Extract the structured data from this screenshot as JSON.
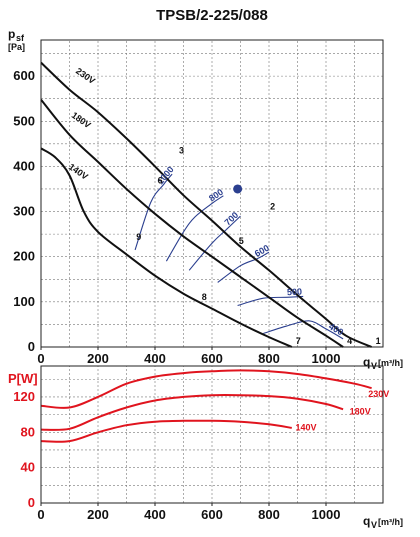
{
  "title": "TPSB/2-225/088",
  "colors": {
    "black": "#111111",
    "blue": "#2b3f8f",
    "red": "#e0141e",
    "grid": "#777777"
  },
  "chart_data": [
    {
      "type": "line",
      "name": "pressure",
      "ylabel_main": "p",
      "ylabel_sub": "sf",
      "ylabel_unit": "[Pa]",
      "xlabel_main": "q",
      "xlabel_sub": "V",
      "xlabel_unit": "[m³/h]",
      "xlim": [
        0,
        1200
      ],
      "ylim": [
        0,
        680
      ],
      "x_ticks": [
        0,
        200,
        400,
        600,
        800,
        1000
      ],
      "x_tick_labels": [
        "0",
        "200",
        "400",
        "600",
        "800",
        "1000"
      ],
      "y_ticks": [
        0,
        100,
        200,
        300,
        400,
        500,
        600
      ],
      "y_tick_labels": [
        "0",
        "100",
        "200",
        "300",
        "400",
        "500",
        "600"
      ],
      "grid": true,
      "series": [
        {
          "name": "230V",
          "points": [
            [
              0,
              630
            ],
            [
              100,
              570
            ],
            [
              200,
              520
            ],
            [
              300,
              462
            ],
            [
              400,
              400
            ],
            [
              500,
              336
            ],
            [
              600,
              280
            ],
            [
              700,
              222
            ],
            [
              800,
              170
            ],
            [
              900,
              115
            ],
            [
              1000,
              62
            ],
            [
              1070,
              25
            ],
            [
              1160,
              0
            ]
          ]
        },
        {
          "name": "180V",
          "points": [
            [
              0,
              548
            ],
            [
              100,
              470
            ],
            [
              200,
              410
            ],
            [
              300,
              350
            ],
            [
              400,
              295
            ],
            [
              500,
              245
            ],
            [
              600,
              200
            ],
            [
              700,
              155
            ],
            [
              800,
              110
            ],
            [
              900,
              65
            ],
            [
              1000,
              25
            ],
            [
              1060,
              0
            ]
          ]
        },
        {
          "name": "140V",
          "points": [
            [
              0,
              440
            ],
            [
              50,
              420
            ],
            [
              100,
              380
            ],
            [
              150,
              300
            ],
            [
              200,
              255
            ],
            [
              300,
              205
            ],
            [
              400,
              158
            ],
            [
              500,
              118
            ],
            [
              600,
              85
            ],
            [
              700,
              52
            ],
            [
              800,
              22
            ],
            [
              880,
              0
            ]
          ]
        }
      ],
      "efficiency_curves": [
        {
          "label": "1000",
          "points": [
            [
              330,
              215
            ],
            [
              385,
              320
            ],
            [
              430,
              360
            ],
            [
              460,
              383
            ]
          ]
        },
        {
          "label": "800",
          "points": [
            [
              440,
              190
            ],
            [
              500,
              255
            ],
            [
              540,
              288
            ],
            [
              600,
              318
            ],
            [
              640,
              335
            ]
          ]
        },
        {
          "label": "700",
          "points": [
            [
              520,
              170
            ],
            [
              600,
              230
            ],
            [
              650,
              260
            ],
            [
              700,
              290
            ]
          ]
        },
        {
          "label": "600",
          "points": [
            [
              620,
              143
            ],
            [
              700,
              180
            ],
            [
              760,
              196
            ],
            [
              800,
              210
            ]
          ]
        },
        {
          "label": "500",
          "points": [
            [
              690,
              92
            ],
            [
              780,
              108
            ],
            [
              860,
              110
            ],
            [
              920,
              112
            ]
          ]
        },
        {
          "label": "400",
          "points": [
            [
              780,
              30
            ],
            [
              860,
              46
            ],
            [
              940,
              58
            ],
            [
              1000,
              40
            ],
            [
              1060,
              18
            ]
          ]
        }
      ],
      "point_labels": [
        {
          "label": "1",
          "x": 1160,
          "y": 0
        },
        {
          "label": "2",
          "x": 790,
          "y": 298
        },
        {
          "label": "3",
          "x": 470,
          "y": 422
        },
        {
          "label": "4",
          "x": 1060,
          "y": 0
        },
        {
          "label": "5",
          "x": 680,
          "y": 222
        },
        {
          "label": "6",
          "x": 395,
          "y": 355
        },
        {
          "label": "7",
          "x": 880,
          "y": 0
        },
        {
          "label": "8",
          "x": 550,
          "y": 97
        },
        {
          "label": "9",
          "x": 320,
          "y": 230
        }
      ],
      "series_labels": [
        {
          "label": "230V",
          "x": 150,
          "y": 595
        },
        {
          "label": "180V",
          "x": 135,
          "y": 497
        },
        {
          "label": "140V",
          "x": 125,
          "y": 383
        }
      ],
      "operating_point": {
        "x": 690,
        "y": 350
      }
    },
    {
      "type": "line",
      "name": "power",
      "ylabel": "P[W]",
      "xlabel_main": "q",
      "xlabel_sub": "V",
      "xlabel_unit": "[m³/h]",
      "xlim": [
        0,
        1200
      ],
      "ylim": [
        0,
        155
      ],
      "x_ticks": [
        0,
        200,
        400,
        600,
        800,
        1000
      ],
      "x_tick_labels": [
        "0",
        "200",
        "400",
        "600",
        "800",
        "1000"
      ],
      "y_ticks": [
        0,
        40,
        80,
        120
      ],
      "y_tick_labels": [
        "0",
        "40",
        "80",
        "120"
      ],
      "grid": true,
      "series": [
        {
          "name": "230V",
          "points": [
            [
              0,
              110
            ],
            [
              100,
              108
            ],
            [
              200,
              120
            ],
            [
              300,
              135
            ],
            [
              400,
              143
            ],
            [
              500,
              147
            ],
            [
              600,
              149
            ],
            [
              700,
              150
            ],
            [
              800,
              149
            ],
            [
              900,
              146
            ],
            [
              1000,
              141
            ],
            [
              1100,
              135
            ],
            [
              1160,
              130
            ]
          ]
        },
        {
          "name": "180V",
          "points": [
            [
              0,
              83
            ],
            [
              100,
              84
            ],
            [
              200,
              97
            ],
            [
              300,
              108
            ],
            [
              400,
              116
            ],
            [
              500,
              120
            ],
            [
              600,
              122
            ],
            [
              700,
              122
            ],
            [
              800,
              121
            ],
            [
              900,
              118
            ],
            [
              1000,
              112
            ],
            [
              1060,
              106
            ]
          ]
        },
        {
          "name": "140V",
          "points": [
            [
              0,
              70
            ],
            [
              100,
              70
            ],
            [
              200,
              80
            ],
            [
              300,
              88
            ],
            [
              400,
              92
            ],
            [
              500,
              93
            ],
            [
              600,
              93
            ],
            [
              700,
              92
            ],
            [
              800,
              89
            ],
            [
              880,
              85
            ]
          ]
        }
      ],
      "series_labels": [
        {
          "label": "230V",
          "x": 1185,
          "y": 120
        },
        {
          "label": "180V",
          "x": 1120,
          "y": 100
        },
        {
          "label": "140V",
          "x": 930,
          "y": 82
        }
      ]
    }
  ]
}
